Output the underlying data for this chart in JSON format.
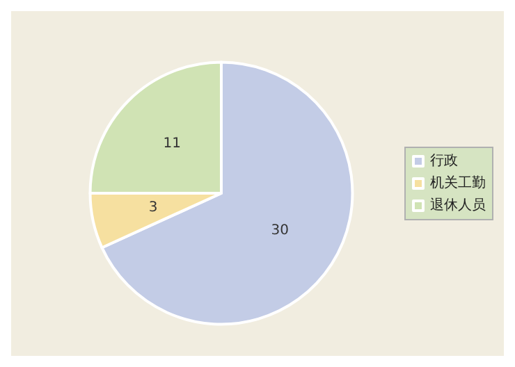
{
  "chart_data": {
    "type": "pie",
    "categories": [
      "行政",
      "机关工勤",
      "退休人员"
    ],
    "values": [
      30,
      3,
      11
    ],
    "colors": [
      "#c3cce6",
      "#f6e0a0",
      "#d0e3b4"
    ],
    "data_labels": true,
    "legend": "right"
  }
}
